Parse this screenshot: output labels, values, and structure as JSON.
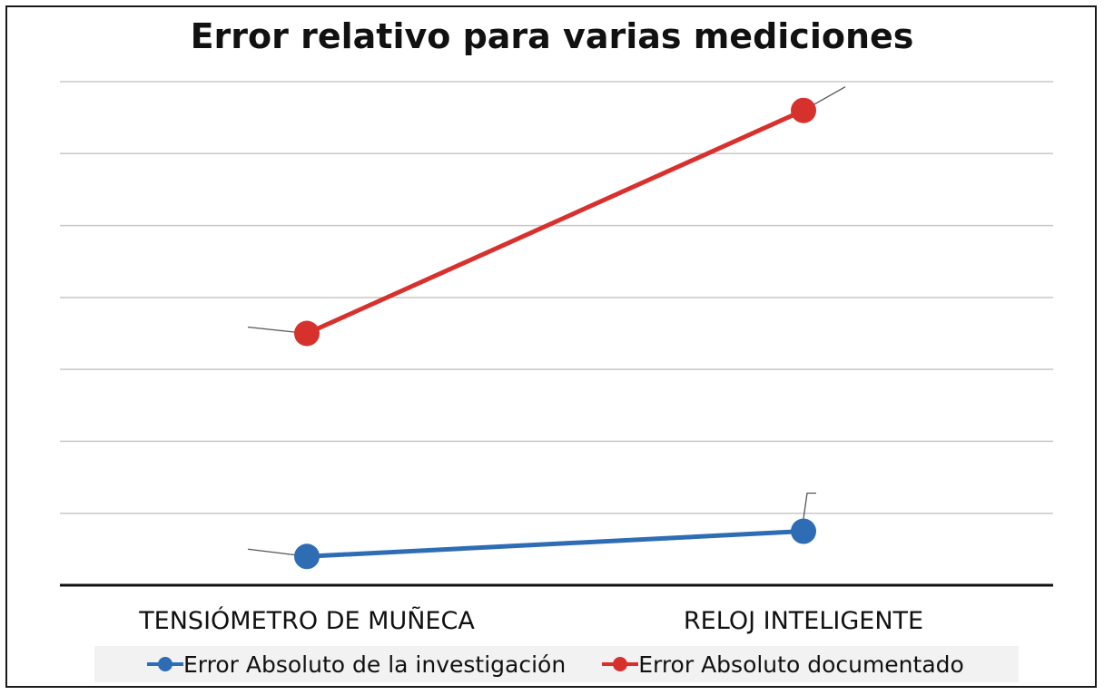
{
  "chart_data": {
    "type": "line",
    "title": "Error relativo para varias mediciones",
    "categories": [
      "TENSIÓMETRO DE MUÑECA",
      "RELOJ INTELIGENTE"
    ],
    "series": [
      {
        "name": "Error Absoluto de la investigación",
        "values": [
          0.4,
          0.75
        ],
        "color": "#2e6db4"
      },
      {
        "name": "Error Absoluto documentado",
        "values": [
          3.5,
          6.6
        ],
        "color": "#d7312e"
      }
    ],
    "ylim": [
      0,
      7
    ],
    "grid": true,
    "y_tick_labels_shown": false,
    "legend_position": "bottom"
  }
}
